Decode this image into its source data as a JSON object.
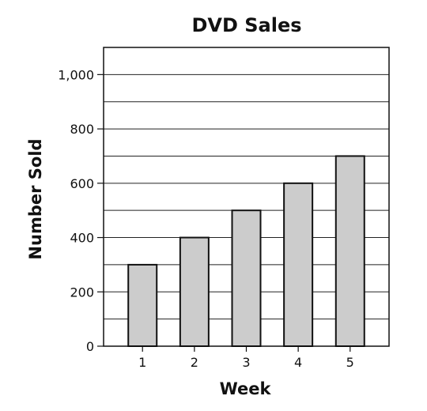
{
  "chart_data": {
    "type": "bar",
    "title": "DVD Sales",
    "xlabel": "Week",
    "ylabel": "Number Sold",
    "categories": [
      "1",
      "2",
      "3",
      "4",
      "5"
    ],
    "values": [
      300,
      400,
      500,
      600,
      700
    ],
    "ylim": [
      0,
      1100
    ],
    "yticks": [
      0,
      200,
      400,
      600,
      800,
      1000
    ],
    "ytick_labels": [
      "0",
      "200",
      "400",
      "600",
      "800",
      "1,000"
    ],
    "grid": true,
    "grid_step": 100,
    "bar_color": "#cccccc",
    "bar_edge_color": "#111111",
    "grid_color": "#222222"
  }
}
